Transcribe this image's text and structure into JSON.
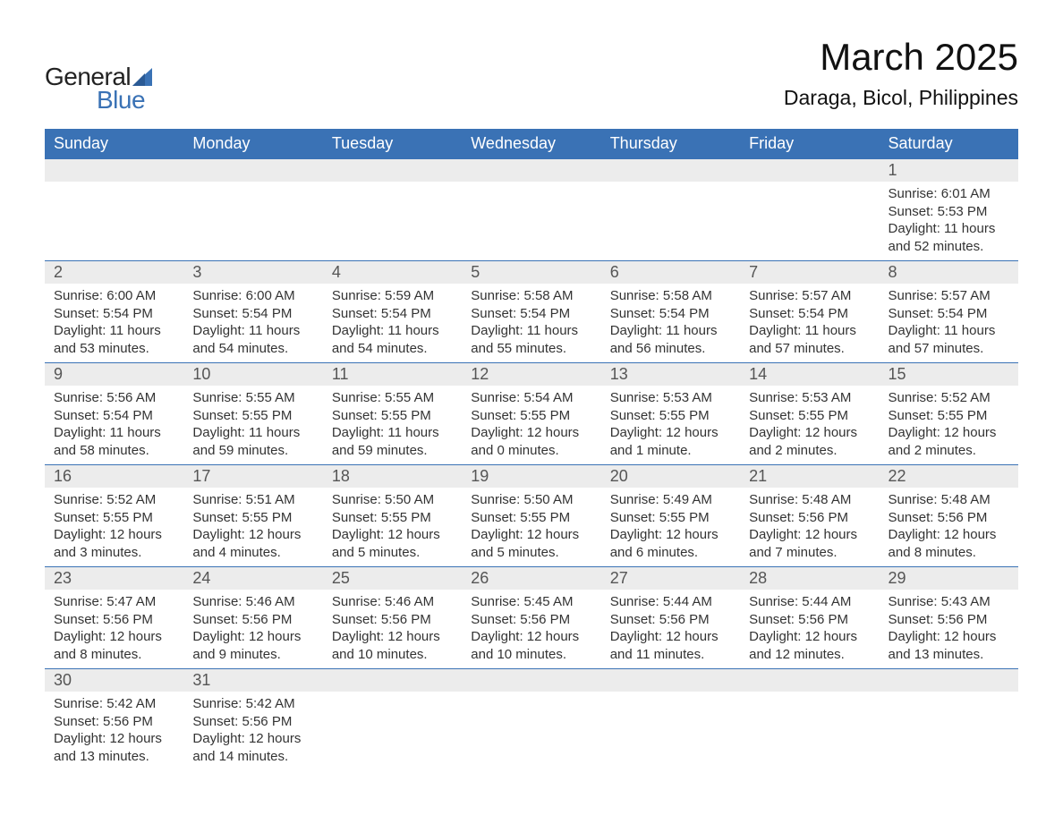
{
  "brand": {
    "word1": "General",
    "word2": "Blue",
    "text_color": "#222222",
    "accent_color": "#3a72b5"
  },
  "title": "March 2025",
  "location": "Daraga, Bicol, Philippines",
  "colors": {
    "header_bg": "#3a72b5",
    "header_text": "#ffffff",
    "daynum_bg": "#ececec",
    "daynum_text": "#555555",
    "body_text": "#333333",
    "rule": "#3a72b5",
    "page_bg": "#ffffff"
  },
  "typography": {
    "title_fontsize": 42,
    "location_fontsize": 23,
    "dayheader_fontsize": 18,
    "daynum_fontsize": 18,
    "data_fontsize": 15,
    "font_family": "Arial"
  },
  "layout": {
    "columns": 7,
    "week_rows": 6,
    "leading_blanks": 6,
    "trailing_blanks": 5
  },
  "day_headers": [
    "Sunday",
    "Monday",
    "Tuesday",
    "Wednesday",
    "Thursday",
    "Friday",
    "Saturday"
  ],
  "days": [
    {
      "n": "1",
      "sunrise": "Sunrise: 6:01 AM",
      "sunset": "Sunset: 5:53 PM",
      "day1": "Daylight: 11 hours",
      "day2": "and 52 minutes."
    },
    {
      "n": "2",
      "sunrise": "Sunrise: 6:00 AM",
      "sunset": "Sunset: 5:54 PM",
      "day1": "Daylight: 11 hours",
      "day2": "and 53 minutes."
    },
    {
      "n": "3",
      "sunrise": "Sunrise: 6:00 AM",
      "sunset": "Sunset: 5:54 PM",
      "day1": "Daylight: 11 hours",
      "day2": "and 54 minutes."
    },
    {
      "n": "4",
      "sunrise": "Sunrise: 5:59 AM",
      "sunset": "Sunset: 5:54 PM",
      "day1": "Daylight: 11 hours",
      "day2": "and 54 minutes."
    },
    {
      "n": "5",
      "sunrise": "Sunrise: 5:58 AM",
      "sunset": "Sunset: 5:54 PM",
      "day1": "Daylight: 11 hours",
      "day2": "and 55 minutes."
    },
    {
      "n": "6",
      "sunrise": "Sunrise: 5:58 AM",
      "sunset": "Sunset: 5:54 PM",
      "day1": "Daylight: 11 hours",
      "day2": "and 56 minutes."
    },
    {
      "n": "7",
      "sunrise": "Sunrise: 5:57 AM",
      "sunset": "Sunset: 5:54 PM",
      "day1": "Daylight: 11 hours",
      "day2": "and 57 minutes."
    },
    {
      "n": "8",
      "sunrise": "Sunrise: 5:57 AM",
      "sunset": "Sunset: 5:54 PM",
      "day1": "Daylight: 11 hours",
      "day2": "and 57 minutes."
    },
    {
      "n": "9",
      "sunrise": "Sunrise: 5:56 AM",
      "sunset": "Sunset: 5:54 PM",
      "day1": "Daylight: 11 hours",
      "day2": "and 58 minutes."
    },
    {
      "n": "10",
      "sunrise": "Sunrise: 5:55 AM",
      "sunset": "Sunset: 5:55 PM",
      "day1": "Daylight: 11 hours",
      "day2": "and 59 minutes."
    },
    {
      "n": "11",
      "sunrise": "Sunrise: 5:55 AM",
      "sunset": "Sunset: 5:55 PM",
      "day1": "Daylight: 11 hours",
      "day2": "and 59 minutes."
    },
    {
      "n": "12",
      "sunrise": "Sunrise: 5:54 AM",
      "sunset": "Sunset: 5:55 PM",
      "day1": "Daylight: 12 hours",
      "day2": "and 0 minutes."
    },
    {
      "n": "13",
      "sunrise": "Sunrise: 5:53 AM",
      "sunset": "Sunset: 5:55 PM",
      "day1": "Daylight: 12 hours",
      "day2": "and 1 minute."
    },
    {
      "n": "14",
      "sunrise": "Sunrise: 5:53 AM",
      "sunset": "Sunset: 5:55 PM",
      "day1": "Daylight: 12 hours",
      "day2": "and 2 minutes."
    },
    {
      "n": "15",
      "sunrise": "Sunrise: 5:52 AM",
      "sunset": "Sunset: 5:55 PM",
      "day1": "Daylight: 12 hours",
      "day2": "and 2 minutes."
    },
    {
      "n": "16",
      "sunrise": "Sunrise: 5:52 AM",
      "sunset": "Sunset: 5:55 PM",
      "day1": "Daylight: 12 hours",
      "day2": "and 3 minutes."
    },
    {
      "n": "17",
      "sunrise": "Sunrise: 5:51 AM",
      "sunset": "Sunset: 5:55 PM",
      "day1": "Daylight: 12 hours",
      "day2": "and 4 minutes."
    },
    {
      "n": "18",
      "sunrise": "Sunrise: 5:50 AM",
      "sunset": "Sunset: 5:55 PM",
      "day1": "Daylight: 12 hours",
      "day2": "and 5 minutes."
    },
    {
      "n": "19",
      "sunrise": "Sunrise: 5:50 AM",
      "sunset": "Sunset: 5:55 PM",
      "day1": "Daylight: 12 hours",
      "day2": "and 5 minutes."
    },
    {
      "n": "20",
      "sunrise": "Sunrise: 5:49 AM",
      "sunset": "Sunset: 5:55 PM",
      "day1": "Daylight: 12 hours",
      "day2": "and 6 minutes."
    },
    {
      "n": "21",
      "sunrise": "Sunrise: 5:48 AM",
      "sunset": "Sunset: 5:56 PM",
      "day1": "Daylight: 12 hours",
      "day2": "and 7 minutes."
    },
    {
      "n": "22",
      "sunrise": "Sunrise: 5:48 AM",
      "sunset": "Sunset: 5:56 PM",
      "day1": "Daylight: 12 hours",
      "day2": "and 8 minutes."
    },
    {
      "n": "23",
      "sunrise": "Sunrise: 5:47 AM",
      "sunset": "Sunset: 5:56 PM",
      "day1": "Daylight: 12 hours",
      "day2": "and 8 minutes."
    },
    {
      "n": "24",
      "sunrise": "Sunrise: 5:46 AM",
      "sunset": "Sunset: 5:56 PM",
      "day1": "Daylight: 12 hours",
      "day2": "and 9 minutes."
    },
    {
      "n": "25",
      "sunrise": "Sunrise: 5:46 AM",
      "sunset": "Sunset: 5:56 PM",
      "day1": "Daylight: 12 hours",
      "day2": "and 10 minutes."
    },
    {
      "n": "26",
      "sunrise": "Sunrise: 5:45 AM",
      "sunset": "Sunset: 5:56 PM",
      "day1": "Daylight: 12 hours",
      "day2": "and 10 minutes."
    },
    {
      "n": "27",
      "sunrise": "Sunrise: 5:44 AM",
      "sunset": "Sunset: 5:56 PM",
      "day1": "Daylight: 12 hours",
      "day2": "and 11 minutes."
    },
    {
      "n": "28",
      "sunrise": "Sunrise: 5:44 AM",
      "sunset": "Sunset: 5:56 PM",
      "day1": "Daylight: 12 hours",
      "day2": "and 12 minutes."
    },
    {
      "n": "29",
      "sunrise": "Sunrise: 5:43 AM",
      "sunset": "Sunset: 5:56 PM",
      "day1": "Daylight: 12 hours",
      "day2": "and 13 minutes."
    },
    {
      "n": "30",
      "sunrise": "Sunrise: 5:42 AM",
      "sunset": "Sunset: 5:56 PM",
      "day1": "Daylight: 12 hours",
      "day2": "and 13 minutes."
    },
    {
      "n": "31",
      "sunrise": "Sunrise: 5:42 AM",
      "sunset": "Sunset: 5:56 PM",
      "day1": "Daylight: 12 hours",
      "day2": "and 14 minutes."
    }
  ]
}
